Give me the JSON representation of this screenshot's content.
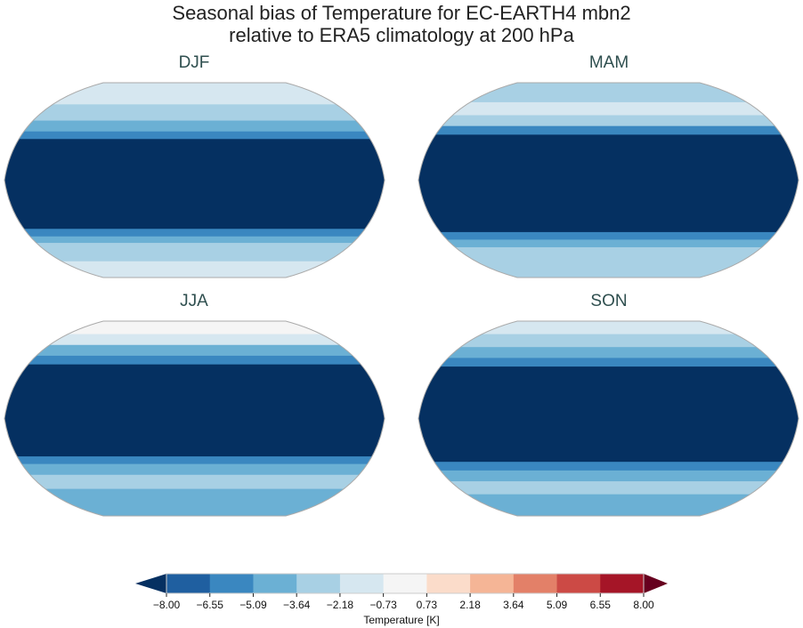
{
  "title_line1": "Seasonal bias of Temperature for EC-EARTH4 mbn2",
  "title_line2": "relative to ERA5 climatology at 200 hPa",
  "chart_data": {
    "type": "heatmap",
    "projection": "Robinson",
    "panels": [
      {
        "title": "DJF",
        "bands": [
          [
            90,
            70,
            -1.5
          ],
          [
            70,
            55,
            -3
          ],
          [
            55,
            45,
            -4.5
          ],
          [
            45,
            38,
            -6
          ],
          [
            38,
            -45,
            -9
          ],
          [
            -45,
            -52,
            -6
          ],
          [
            -52,
            -58,
            -4.5
          ],
          [
            -58,
            -75,
            -3
          ],
          [
            -75,
            -90,
            -1.5
          ]
        ]
      },
      {
        "title": "MAM",
        "bands": [
          [
            90,
            72,
            -3
          ],
          [
            72,
            60,
            -2
          ],
          [
            60,
            50,
            -3.5
          ],
          [
            50,
            42,
            -5.5
          ],
          [
            42,
            -48,
            -9
          ],
          [
            -48,
            -55,
            -6
          ],
          [
            -55,
            -62,
            -4.5
          ],
          [
            -62,
            -90,
            -3
          ]
        ]
      },
      {
        "title": "JJA",
        "bands": [
          [
            90,
            78,
            -0.5
          ],
          [
            78,
            68,
            -2
          ],
          [
            68,
            58,
            -4
          ],
          [
            58,
            50,
            -6
          ],
          [
            50,
            -35,
            -9
          ],
          [
            -35,
            -42,
            -6
          ],
          [
            -42,
            -52,
            -4.5
          ],
          [
            -52,
            -65,
            -3
          ],
          [
            -65,
            -90,
            -4
          ]
        ]
      },
      {
        "title": "SON",
        "bands": [
          [
            90,
            78,
            -1
          ],
          [
            78,
            66,
            -3
          ],
          [
            66,
            56,
            -5
          ],
          [
            56,
            48,
            -6.5
          ],
          [
            48,
            -40,
            -9
          ],
          [
            -40,
            -48,
            -6
          ],
          [
            -48,
            -58,
            -4.5
          ],
          [
            -58,
            -70,
            -3
          ],
          [
            -70,
            -90,
            -4
          ]
        ]
      }
    ],
    "colorbar": {
      "label": "Temperature [K]",
      "levels": [
        "-8.00",
        "-6.55",
        "-5.09",
        "-3.64",
        "-2.18",
        "-0.73",
        "0.73",
        "2.18",
        "3.64",
        "5.09",
        "6.55",
        "8.00"
      ],
      "colors": [
        "#1f5fa0",
        "#3a87c0",
        "#6bb0d4",
        "#a8d0e4",
        "#d6e7f0",
        "#f5f5f5",
        "#fbdcca",
        "#f5b596",
        "#e38068",
        "#cc4a45",
        "#a51527"
      ],
      "under_color": "#053061",
      "over_color": "#67001f"
    }
  }
}
